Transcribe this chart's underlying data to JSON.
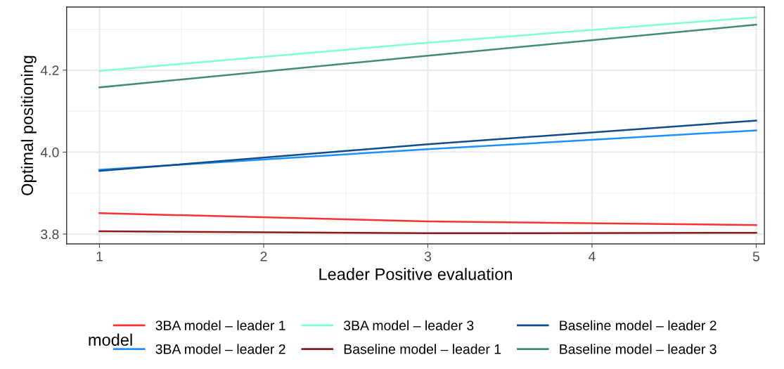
{
  "chart_data": {
    "type": "line",
    "xlabel": "Leader Positive evaluation",
    "ylabel": "Optimal positioning",
    "legend_title": "model",
    "x": [
      1,
      3,
      5
    ],
    "xlim": [
      0.8,
      5.05
    ],
    "ylim": [
      3.776,
      4.354
    ],
    "xticks": [
      1,
      2,
      3,
      4,
      5
    ],
    "yticks": [
      {
        "value": 3.8,
        "label": "3.8"
      },
      {
        "value": 4.0,
        "label": "4.0"
      },
      {
        "value": 4.2,
        "label": "4.2"
      }
    ],
    "grid": true,
    "legend": "bottom",
    "marker": "none",
    "line_style": "solid",
    "series": [
      {
        "name": "3BA model – leader 1",
        "color": "#ff3030",
        "values": [
          3.851,
          3.831,
          3.822
        ]
      },
      {
        "name": "3BA model – leader 2",
        "color": "#1e90ff",
        "values": [
          3.957,
          4.007,
          4.053
        ]
      },
      {
        "name": "3BA model – leader 3",
        "color": "#7fffd4",
        "values": [
          4.198,
          4.267,
          4.329
        ]
      },
      {
        "name": "Baseline model – leader 1",
        "color": "#8b1a1a",
        "values": [
          3.807,
          3.802,
          3.803
        ]
      },
      {
        "name": "Baseline model – leader 2",
        "color": "#104e8b",
        "values": [
          3.954,
          4.019,
          4.077
        ]
      },
      {
        "name": "Baseline model – leader 3",
        "color": "#458b74",
        "values": [
          4.158,
          4.235,
          4.311
        ]
      }
    ]
  }
}
